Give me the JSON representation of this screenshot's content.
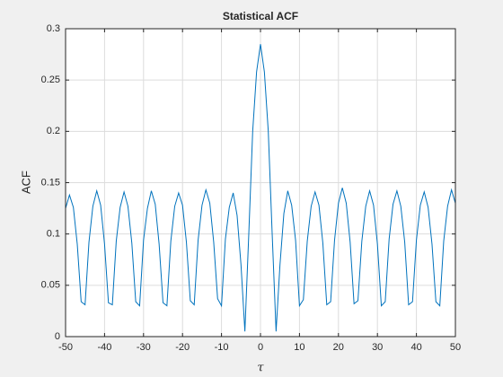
{
  "chart_data": {
    "type": "line",
    "title": "Statistical ACF",
    "xlabel": "τ",
    "ylabel": "ACF",
    "x": [
      -50,
      -49,
      -48,
      -47,
      -46,
      -45,
      -44,
      -43,
      -42,
      -41,
      -40,
      -39,
      -38,
      -37,
      -36,
      -35,
      -34,
      -33,
      -32,
      -31,
      -30,
      -29,
      -28,
      -27,
      -26,
      -25,
      -24,
      -23,
      -22,
      -21,
      -20,
      -19,
      -18,
      -17,
      -16,
      -15,
      -14,
      -13,
      -12,
      -11,
      -10,
      -9,
      -8,
      -7,
      -6,
      -5,
      -4,
      -3,
      -2,
      -1,
      0,
      1,
      2,
      3,
      4,
      5,
      6,
      7,
      8,
      9,
      10,
      11,
      12,
      13,
      14,
      15,
      16,
      17,
      18,
      19,
      20,
      21,
      22,
      23,
      24,
      25,
      26,
      27,
      28,
      29,
      30,
      31,
      32,
      33,
      34,
      35,
      36,
      37,
      38,
      39,
      40,
      41,
      42,
      43,
      44,
      45,
      46,
      47,
      48,
      49,
      50
    ],
    "series": [
      {
        "name": "ACF",
        "color": "#0072bd",
        "values": [
          0.125,
          0.138,
          0.126,
          0.09,
          0.034,
          0.031,
          0.092,
          0.127,
          0.142,
          0.128,
          0.09,
          0.033,
          0.031,
          0.093,
          0.126,
          0.141,
          0.127,
          0.091,
          0.034,
          0.03,
          0.094,
          0.125,
          0.142,
          0.129,
          0.09,
          0.033,
          0.03,
          0.093,
          0.127,
          0.14,
          0.128,
          0.092,
          0.035,
          0.031,
          0.094,
          0.128,
          0.143,
          0.13,
          0.092,
          0.037,
          0.03,
          0.095,
          0.126,
          0.14,
          0.118,
          0.07,
          0.005,
          0.1,
          0.2,
          0.258,
          0.285,
          0.258,
          0.2,
          0.1,
          0.005,
          0.07,
          0.12,
          0.142,
          0.128,
          0.094,
          0.03,
          0.036,
          0.093,
          0.127,
          0.141,
          0.128,
          0.091,
          0.031,
          0.034,
          0.094,
          0.13,
          0.145,
          0.13,
          0.092,
          0.032,
          0.035,
          0.093,
          0.127,
          0.142,
          0.128,
          0.09,
          0.03,
          0.034,
          0.095,
          0.129,
          0.142,
          0.127,
          0.092,
          0.031,
          0.034,
          0.094,
          0.128,
          0.141,
          0.126,
          0.09,
          0.034,
          0.03,
          0.093,
          0.127,
          0.143,
          0.13
        ]
      }
    ],
    "xlim": [
      -50,
      50
    ],
    "xticks": [
      -50,
      -40,
      -30,
      -20,
      -10,
      0,
      10,
      20,
      30,
      40,
      50
    ],
    "ylim": [
      0,
      0.3
    ],
    "yticks": [
      0,
      0.05,
      0.1,
      0.15,
      0.2,
      0.25,
      0.3
    ],
    "grid": true
  }
}
